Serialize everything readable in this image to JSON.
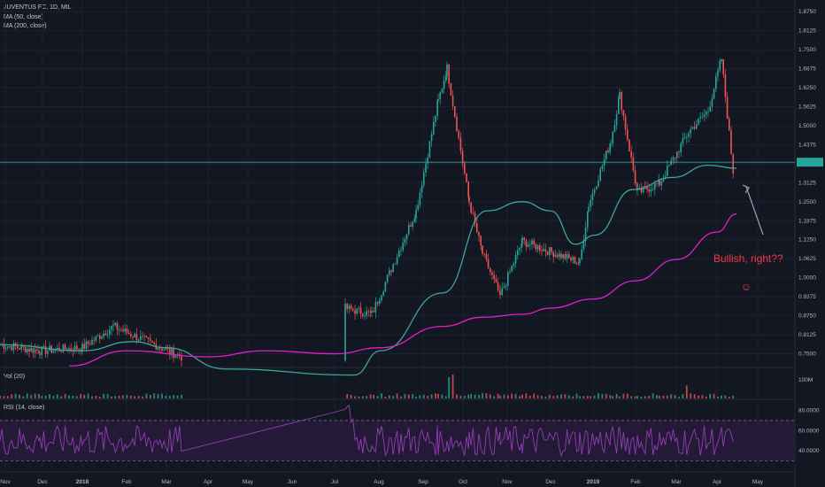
{
  "legend": {
    "symbol": "JUVENTUS FC, 1D, MIL",
    "ma50": "MA (50, close)",
    "ma200": "MA (200, close)",
    "vol": "Vol (20)",
    "rsi": "RSI (14, close)"
  },
  "colors": {
    "background": "#131722",
    "grid": "#1e2230",
    "up": "#26a69a",
    "down": "#ef5350",
    "ma50": "#3fa39a",
    "ma200": "#e020c8",
    "rsi_line": "#8e3fb0",
    "rsi_band": "#2a1a3e",
    "annotation": "#f23645",
    "current_price_bg": "#26a69a"
  },
  "annotation": {
    "text": "Bullish, right??",
    "emoji": "☺"
  },
  "chart_data": {
    "type": "candlestick",
    "title": "JUVENTUS FC, 1D, MIL",
    "x_ticks": [
      "Nov",
      "Dec",
      "2018",
      "Feb",
      "Mar",
      "Apr",
      "May",
      "Jun",
      "Jul",
      "Aug",
      "Sep",
      "Oct",
      "Nov",
      "Dec",
      "2019",
      "Feb",
      "Mar",
      "Apr",
      "May"
    ],
    "price_ticks": [
      "1.8750",
      "1.8125",
      "1.7500",
      "1.6875",
      "1.6250",
      "1.5625",
      "1.5000",
      "1.4375",
      "1.3750",
      "1.3125",
      "1.2500",
      "1.1875",
      "1.1250",
      "1.0625",
      "1.0000",
      "0.9375",
      "0.8750",
      "0.8125",
      "0.7500"
    ],
    "price_range": [
      0.705,
      1.89
    ],
    "current_price": 1.38,
    "current_price_label": "",
    "close_series": [
      [
        "Nov",
        0.78
      ],
      [
        "Dec",
        0.76
      ],
      [
        "2018",
        0.77
      ],
      [
        "Feb",
        0.84
      ],
      [
        "Mar",
        0.74
      ],
      [
        "Jul",
        0.9
      ],
      [
        "Aug",
        0.88
      ],
      [
        "Aug-mid",
        1.22
      ],
      [
        "Sep",
        1.58
      ],
      [
        "Sep-late",
        1.69
      ],
      [
        "Oct",
        1.25
      ],
      [
        "Oct-late",
        1.08
      ],
      [
        "Nov",
        0.94
      ],
      [
        "Nov-mid",
        1.12
      ],
      [
        "Dec",
        1.05
      ],
      [
        "2019",
        1.24
      ],
      [
        "Jan-late",
        1.45
      ],
      [
        "Feb",
        1.6
      ],
      [
        "Feb-mid",
        1.28
      ],
      [
        "Mar",
        1.31
      ],
      [
        "Mar-late",
        1.48
      ],
      [
        "Apr",
        1.55
      ],
      [
        "Apr-mid",
        1.72
      ],
      [
        "Apr-late",
        1.3
      ]
    ],
    "ma50": [
      [
        "Nov",
        0.78
      ],
      [
        "2018",
        0.76
      ],
      [
        "Feb",
        0.79
      ],
      [
        "Mar",
        0.77
      ],
      [
        "Apr",
        0.7
      ],
      [
        "Jul",
        0.68
      ],
      [
        "Aug",
        0.76
      ],
      [
        "Sep",
        0.95
      ],
      [
        "Oct",
        1.22
      ],
      [
        "Oct-late",
        1.25
      ],
      [
        "Nov-mid",
        1.22
      ],
      [
        "Dec",
        1.11
      ],
      [
        "2019",
        1.14
      ],
      [
        "Feb",
        1.29
      ],
      [
        "Mar",
        1.33
      ],
      [
        "Apr",
        1.37
      ],
      [
        "Apr-late",
        1.36
      ]
    ],
    "ma200": [
      [
        "Dec",
        0.71
      ],
      [
        "Feb",
        0.76
      ],
      [
        "Apr",
        0.74
      ],
      [
        "Jun",
        0.76
      ],
      [
        "Jul",
        0.75
      ],
      [
        "Aug",
        0.77
      ],
      [
        "Sep",
        0.84
      ],
      [
        "Oct",
        0.87
      ],
      [
        "Nov",
        0.88
      ],
      [
        "Dec",
        0.9
      ],
      [
        "2019",
        0.93
      ],
      [
        "Feb",
        0.99
      ],
      [
        "Mar",
        1.06
      ],
      [
        "Apr",
        1.15
      ],
      [
        "Apr-late",
        1.21
      ]
    ],
    "volume": {
      "max_label": "100M"
    },
    "rsi": {
      "ticks": [
        "80.0000",
        "60.0000",
        "40.0000"
      ],
      "upper": 70,
      "lower": 30
    }
  }
}
